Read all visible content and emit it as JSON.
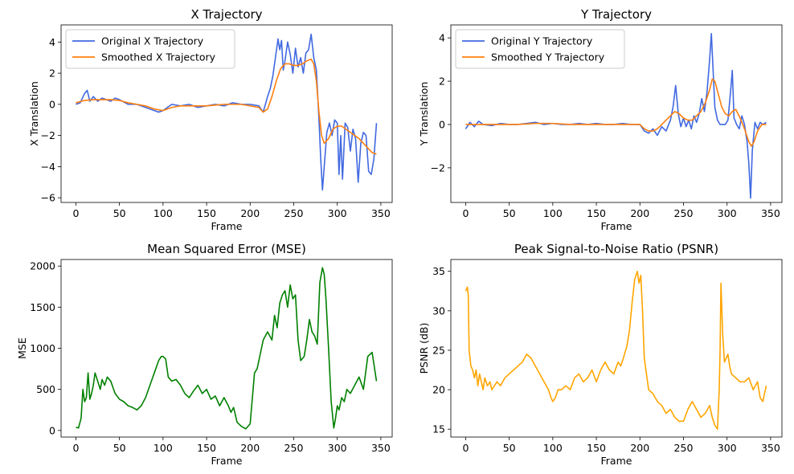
{
  "chart_data": [
    {
      "type": "line",
      "title": "X Trajectory",
      "xlabel": "Frame",
      "ylabel": "X Translation",
      "xlim": [
        -17,
        363
      ],
      "ylim": [
        -6.3,
        5.1
      ],
      "xticks": [
        0,
        50,
        100,
        150,
        200,
        250,
        300,
        350
      ],
      "yticks": [
        -6,
        -4,
        -2,
        0,
        2,
        4
      ],
      "legend": "top-left",
      "grid": false,
      "series": [
        {
          "name": "Original X Trajectory",
          "color": "#4169e1",
          "x": [
            0,
            5,
            10,
            13,
            16,
            20,
            25,
            30,
            35,
            40,
            45,
            50,
            60,
            70,
            80,
            90,
            95,
            100,
            105,
            110,
            120,
            130,
            140,
            150,
            160,
            170,
            180,
            190,
            200,
            210,
            215,
            220,
            223,
            226,
            229,
            232,
            234,
            236,
            238,
            240,
            243,
            246,
            249,
            252,
            255,
            258,
            261,
            264,
            267,
            270,
            273,
            276,
            279,
            281,
            283,
            285,
            288,
            291,
            294,
            297,
            300,
            302,
            304,
            306,
            309,
            312,
            315,
            318,
            321,
            324,
            327,
            330,
            333,
            336,
            339,
            342,
            345
          ],
          "y": [
            0.0,
            0.1,
            0.7,
            0.9,
            0.2,
            0.5,
            0.2,
            0.4,
            0.3,
            0.2,
            0.4,
            0.3,
            0.0,
            0.0,
            -0.2,
            -0.4,
            -0.5,
            -0.4,
            -0.2,
            0.0,
            -0.1,
            0.0,
            -0.2,
            -0.1,
            0.0,
            -0.1,
            0.1,
            0.0,
            0.0,
            -0.1,
            -0.5,
            0.5,
            1.0,
            1.8,
            3.0,
            4.2,
            3.5,
            4.1,
            2.2,
            2.8,
            4.0,
            3.2,
            2.0,
            3.6,
            2.4,
            3.0,
            2.0,
            3.3,
            3.5,
            4.5,
            3.0,
            2.2,
            -1.0,
            -3.5,
            -5.5,
            -4.0,
            -1.8,
            -1.2,
            -2.0,
            -1.0,
            -1.2,
            -4.5,
            -2.0,
            -4.8,
            -1.2,
            -1.5,
            -3.0,
            -1.6,
            -2.2,
            -5.0,
            -2.5,
            -1.8,
            -2.0,
            -4.3,
            -4.5,
            -3.5,
            -1.2
          ]
        },
        {
          "name": "Smoothed X Trajectory",
          "color": "#ff7f0e",
          "x": [
            0,
            10,
            20,
            30,
            40,
            50,
            60,
            70,
            80,
            90,
            100,
            110,
            120,
            130,
            140,
            150,
            160,
            170,
            180,
            190,
            200,
            210,
            215,
            220,
            225,
            230,
            235,
            240,
            245,
            250,
            255,
            260,
            265,
            270,
            273,
            276,
            279,
            282,
            285,
            290,
            295,
            300,
            305,
            310,
            315,
            320,
            325,
            330,
            335,
            340,
            345
          ],
          "y": [
            0.1,
            0.25,
            0.3,
            0.3,
            0.3,
            0.25,
            0.1,
            0.0,
            -0.1,
            -0.3,
            -0.4,
            -0.2,
            -0.1,
            -0.1,
            -0.1,
            -0.1,
            -0.05,
            0.0,
            0.0,
            0.0,
            -0.1,
            -0.2,
            -0.5,
            -0.3,
            0.5,
            1.5,
            2.3,
            2.6,
            2.6,
            2.5,
            2.5,
            2.6,
            2.8,
            2.9,
            2.6,
            1.5,
            -0.5,
            -2.0,
            -2.5,
            -2.2,
            -1.6,
            -1.4,
            -1.4,
            -1.6,
            -1.8,
            -2.0,
            -2.2,
            -2.5,
            -2.8,
            -3.1,
            -3.2
          ]
        }
      ]
    },
    {
      "type": "line",
      "title": "Y Trajectory",
      "xlabel": "Frame",
      "ylabel": "Y Translation",
      "xlim": [
        -17,
        363
      ],
      "ylim": [
        -3.6,
        4.6
      ],
      "xticks": [
        0,
        50,
        100,
        150,
        200,
        250,
        300,
        350
      ],
      "yticks": [
        -2,
        0,
        2,
        4
      ],
      "legend": "top-left",
      "grid": false,
      "series": [
        {
          "name": "Original Y Trajectory",
          "color": "#4169e1",
          "x": [
            0,
            5,
            10,
            15,
            20,
            30,
            40,
            50,
            60,
            70,
            80,
            90,
            100,
            110,
            120,
            130,
            140,
            150,
            160,
            170,
            180,
            190,
            200,
            205,
            210,
            215,
            220,
            225,
            230,
            235,
            238,
            241,
            244,
            247,
            250,
            253,
            256,
            259,
            262,
            265,
            268,
            271,
            274,
            277,
            280,
            282,
            284,
            286,
            289,
            292,
            295,
            298,
            301,
            304,
            306,
            308,
            311,
            314,
            317,
            320,
            323,
            325,
            327,
            329,
            332,
            335,
            338,
            341,
            345
          ],
          "y": [
            -0.2,
            0.1,
            -0.1,
            0.15,
            0.0,
            -0.05,
            0.05,
            0.0,
            0.0,
            0.05,
            0.1,
            0.0,
            0.05,
            0.0,
            0.0,
            0.05,
            0.0,
            0.05,
            0.0,
            0.0,
            0.05,
            0.0,
            0.0,
            -0.3,
            -0.4,
            -0.2,
            -0.5,
            -0.1,
            -0.3,
            0.2,
            0.8,
            1.8,
            0.5,
            -0.1,
            0.3,
            -0.1,
            0.2,
            -0.2,
            0.4,
            0.1,
            0.5,
            1.2,
            0.6,
            1.5,
            3.0,
            4.2,
            2.5,
            0.8,
            0.2,
            0.0,
            0.0,
            0.0,
            0.2,
            1.5,
            2.5,
            0.3,
            0.0,
            -0.2,
            0.4,
            0.0,
            -0.8,
            -1.8,
            -3.4,
            -1.2,
            0.1,
            -0.2,
            0.1,
            0.0,
            0.1
          ]
        },
        {
          "name": "Smoothed Y Trajectory",
          "color": "#ff7f0e",
          "x": [
            0,
            20,
            40,
            60,
            80,
            100,
            120,
            140,
            160,
            180,
            200,
            205,
            210,
            215,
            220,
            225,
            230,
            235,
            240,
            245,
            250,
            255,
            260,
            265,
            270,
            275,
            280,
            283,
            286,
            290,
            294,
            298,
            302,
            306,
            310,
            315,
            320,
            325,
            328,
            331,
            335,
            340,
            345
          ],
          "y": [
            0.0,
            0.0,
            0.0,
            0.0,
            0.05,
            0.05,
            0.0,
            0.0,
            0.0,
            0.0,
            0.0,
            -0.2,
            -0.3,
            -0.3,
            -0.2,
            0.0,
            0.2,
            0.4,
            0.6,
            0.5,
            0.3,
            0.2,
            0.2,
            0.4,
            0.6,
            1.0,
            1.6,
            2.1,
            2.0,
            1.4,
            0.8,
            0.5,
            0.4,
            0.6,
            0.7,
            0.3,
            -0.2,
            -0.8,
            -1.0,
            -0.8,
            -0.3,
            0.0,
            0.0
          ]
        }
      ]
    },
    {
      "type": "line",
      "title": "Mean Squared Error (MSE)",
      "xlabel": "Frame",
      "ylabel": "MSE",
      "xlim": [
        -17,
        363
      ],
      "ylim": [
        -80,
        2080
      ],
      "xticks": [
        0,
        50,
        100,
        150,
        200,
        250,
        300,
        350
      ],
      "yticks": [
        0,
        500,
        1000,
        1500,
        2000
      ],
      "grid": false,
      "series": [
        {
          "color": "#008000",
          "x": [
            0,
            3,
            6,
            8,
            10,
            12,
            14,
            16,
            18,
            20,
            22,
            25,
            28,
            30,
            33,
            36,
            40,
            45,
            50,
            55,
            60,
            65,
            70,
            75,
            80,
            85,
            90,
            95,
            98,
            100,
            103,
            106,
            110,
            115,
            120,
            125,
            130,
            135,
            140,
            145,
            150,
            155,
            160,
            165,
            170,
            175,
            178,
            181,
            185,
            190,
            195,
            200,
            205,
            208,
            211,
            215,
            220,
            225,
            228,
            231,
            234,
            237,
            240,
            243,
            246,
            249,
            252,
            255,
            258,
            262,
            265,
            268,
            271,
            274,
            277,
            280,
            283,
            285,
            287,
            290,
            293,
            296,
            298,
            300,
            302,
            305,
            308,
            311,
            315,
            320,
            325,
            330,
            335,
            340,
            345
          ],
          "y": [
            40,
            30,
            150,
            500,
            350,
            400,
            700,
            380,
            450,
            550,
            700,
            600,
            500,
            620,
            550,
            650,
            600,
            450,
            380,
            350,
            300,
            280,
            250,
            300,
            400,
            550,
            700,
            850,
            900,
            900,
            870,
            650,
            600,
            620,
            550,
            450,
            400,
            480,
            550,
            450,
            500,
            380,
            420,
            300,
            400,
            300,
            220,
            280,
            100,
            50,
            20,
            80,
            700,
            750,
            900,
            1100,
            1200,
            1100,
            1400,
            1250,
            1550,
            1650,
            1700,
            1500,
            1770,
            1600,
            1650,
            1100,
            850,
            900,
            1100,
            1350,
            1200,
            1150,
            1050,
            1800,
            1980,
            1900,
            1600,
            1000,
            350,
            30,
            150,
            300,
            250,
            400,
            350,
            500,
            450,
            550,
            650,
            500,
            900,
            950,
            600
          ]
        }
      ]
    },
    {
      "type": "line",
      "title": "Peak Signal-to-Noise Ratio (PSNR)",
      "xlabel": "Frame",
      "ylabel": "PSNR (dB)",
      "xlim": [
        -17,
        363
      ],
      "ylim": [
        14.0,
        36.5
      ],
      "xticks": [
        0,
        50,
        100,
        150,
        200,
        250,
        300,
        350
      ],
      "yticks": [
        15,
        20,
        25,
        30,
        35
      ],
      "grid": false,
      "series": [
        {
          "color": "#ffa500",
          "x": [
            0,
            2,
            3,
            4,
            6,
            8,
            10,
            12,
            14,
            16,
            18,
            20,
            22,
            25,
            28,
            30,
            33,
            36,
            40,
            45,
            50,
            55,
            60,
            65,
            70,
            75,
            80,
            85,
            90,
            95,
            98,
            100,
            103,
            106,
            110,
            115,
            120,
            125,
            130,
            135,
            140,
            145,
            150,
            155,
            160,
            165,
            170,
            175,
            178,
            181,
            185,
            188,
            191,
            194,
            197,
            199,
            201,
            203,
            205,
            210,
            215,
            220,
            225,
            230,
            235,
            240,
            245,
            250,
            255,
            260,
            265,
            270,
            275,
            280,
            283,
            286,
            289,
            291,
            292,
            293,
            295,
            297,
            299,
            301,
            303,
            305,
            310,
            315,
            320,
            325,
            330,
            335,
            338,
            341,
            345
          ],
          "y": [
            32.5,
            33.0,
            32.0,
            25.0,
            23.0,
            22.5,
            21.5,
            22.5,
            20.5,
            22.0,
            21.0,
            20.0,
            21.5,
            20.5,
            21.0,
            20.0,
            20.5,
            21.0,
            20.5,
            21.5,
            22.0,
            22.5,
            23.0,
            23.5,
            24.5,
            24.0,
            23.0,
            22.0,
            21.0,
            20.0,
            19.0,
            18.5,
            19.0,
            20.0,
            20.0,
            20.5,
            20.0,
            21.5,
            22.0,
            21.0,
            21.5,
            22.5,
            21.0,
            22.5,
            23.5,
            22.5,
            22.0,
            23.5,
            23.0,
            24.0,
            25.5,
            27.5,
            31.0,
            34.0,
            35.0,
            33.5,
            34.5,
            30.0,
            24.0,
            20.0,
            19.5,
            18.5,
            18.0,
            17.0,
            17.5,
            16.5,
            16.0,
            16.0,
            17.5,
            18.5,
            17.5,
            16.5,
            17.0,
            18.0,
            16.5,
            15.5,
            15.0,
            20.0,
            25.0,
            33.5,
            27.0,
            23.5,
            24.0,
            24.5,
            23.0,
            22.0,
            21.5,
            21.0,
            21.0,
            21.5,
            20.0,
            21.0,
            19.0,
            18.5,
            20.5
          ]
        }
      ]
    }
  ]
}
